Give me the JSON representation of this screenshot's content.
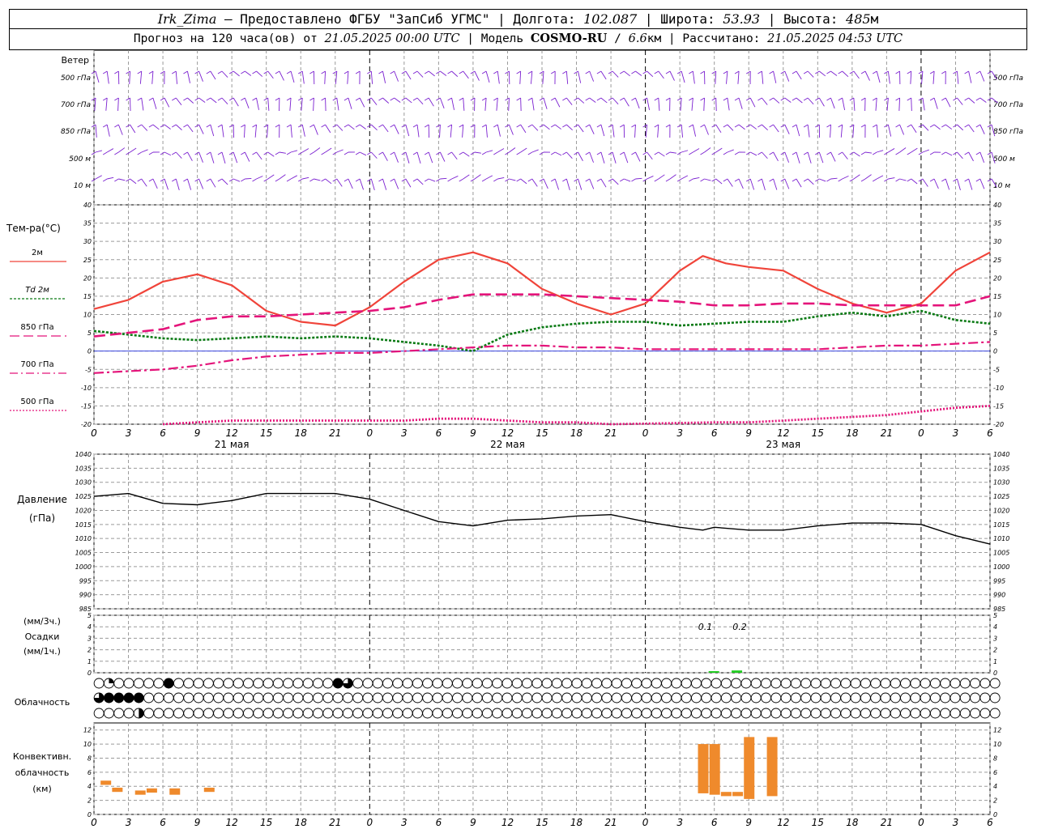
{
  "header": {
    "station": "Irk_Zima",
    "provider_prefix": " – Предоставлено ФГБУ \"ЗапСиб УГМС\" | Долгота: ",
    "lon": "102.087",
    "lat_prefix": " | Широта: ",
    "lat": "53.93",
    "alt_prefix": " | Высота: ",
    "alt": "485",
    "alt_unit": "м",
    "forecast_prefix": "Прогноз на 120 часа(ов) от ",
    "forecast_time": "21.05.2025 00:00 UTC",
    "model_prefix": " | Модель ",
    "model": "COSMO-RU",
    "res_sep": " / ",
    "res": "6.6",
    "res_unit": "км",
    "computed_prefix": " | Рассчитано: ",
    "computed": "21.05.2025 04:53 UTC"
  },
  "colors": {
    "grid": "#9a9a9a",
    "wind": "#7a1fd0",
    "t2m": "#f0443a",
    "td2m": "#0a7a14",
    "t850": "#e4147a",
    "t700": "#e4147a",
    "t500": "#e4147a",
    "zero_line": "#3a46e0",
    "pressure": "#000000",
    "precip": "#22cc22",
    "conv": "#ef8a2c"
  },
  "wind": {
    "title": "Ветер",
    "levels": [
      "500 гПа",
      "700 гПа",
      "850 гПа",
      "500 м",
      "10  м"
    ]
  },
  "temp": {
    "title": "Тем-ра(°C)",
    "legend": [
      "2м",
      "Td  2м",
      "850 гПа",
      "700 гПа",
      "500 гПа"
    ],
    "yticks": [
      40,
      35,
      30,
      25,
      20,
      15,
      10,
      5,
      0,
      -5,
      -10,
      -15,
      -20
    ]
  },
  "time_axis": {
    "hour_labels": [
      "0",
      "3",
      "6",
      "9",
      "12",
      "15",
      "18",
      "21",
      "0",
      "3",
      "6",
      "9",
      "12",
      "15",
      "18",
      "21",
      "0",
      "3",
      "6",
      "9",
      "12",
      "15",
      "18",
      "21",
      "0",
      "3",
      "6"
    ],
    "day_labels": [
      "21 мая",
      "22 мая",
      "23 мая"
    ]
  },
  "pressure_panel": {
    "title": "Давление",
    "unit": "(гПа)",
    "yticks": [
      1040,
      1035,
      1030,
      1025,
      1020,
      1015,
      1010,
      1005,
      1000,
      995,
      990,
      985
    ]
  },
  "precip_panel": {
    "title_a": "(мм/3ч.)",
    "title_b": "Осадки",
    "title_c": "(мм/1ч.)",
    "yticks": [
      5,
      4,
      3,
      2,
      1,
      0
    ],
    "labels": [
      {
        "hour": 53,
        "text": "0.1"
      },
      {
        "hour": 56,
        "text": "0.2"
      }
    ]
  },
  "cloud_panel": {
    "title": "Облачность"
  },
  "conv_panel": {
    "title_a": "Конвективн.",
    "title_b": "облачность",
    "title_c": "(км)",
    "yticks": [
      12,
      10,
      8,
      6,
      4,
      2,
      0
    ]
  },
  "chart_data": {
    "type": "line",
    "x_unit": "hours since 21.05.2025 00:00 UTC",
    "temperature": {
      "ylim": [
        -20,
        40
      ],
      "series": [
        {
          "name": "2м",
          "x": [
            0,
            3,
            6,
            9,
            12,
            15,
            18,
            21,
            24,
            27,
            30,
            33,
            36,
            39,
            42,
            45,
            48,
            51,
            53,
            55,
            57,
            60,
            63,
            66,
            69,
            72,
            75,
            78
          ],
          "values": [
            11.5,
            14,
            19,
            21,
            18,
            11,
            8,
            7,
            12,
            19,
            25,
            27,
            24,
            17,
            13,
            10,
            13,
            22,
            26,
            24,
            23,
            22,
            17,
            13,
            10.5,
            13,
            22,
            27
          ]
        },
        {
          "name": "Td  2м",
          "x": [
            0,
            3,
            6,
            9,
            12,
            15,
            18,
            21,
            24,
            27,
            30,
            33,
            36,
            39,
            42,
            45,
            48,
            51,
            54,
            57,
            60,
            63,
            66,
            69,
            72,
            75,
            78
          ],
          "values": [
            5.5,
            4.5,
            3.5,
            3,
            3.5,
            4,
            3.5,
            4,
            3.5,
            2.5,
            1.5,
            0,
            4.5,
            6.5,
            7.5,
            8,
            8,
            7,
            7.5,
            8,
            8,
            9.5,
            10.5,
            9.5,
            11,
            8.5,
            7.5
          ]
        },
        {
          "name": "850 гПа",
          "x": [
            0,
            3,
            6,
            9,
            12,
            15,
            18,
            21,
            24,
            27,
            30,
            33,
            36,
            39,
            42,
            45,
            48,
            51,
            54,
            57,
            60,
            63,
            66,
            69,
            72,
            75,
            78
          ],
          "values": [
            4,
            5,
            6,
            8.5,
            9.5,
            9.5,
            10,
            10.5,
            11,
            12,
            14,
            15.5,
            15.5,
            15.5,
            15,
            14.5,
            14,
            13.5,
            12.5,
            12.5,
            13,
            13,
            12.5,
            12.5,
            12.5,
            12.5,
            15
          ]
        },
        {
          "name": "700 гПа",
          "x": [
            0,
            3,
            6,
            9,
            12,
            15,
            18,
            21,
            24,
            27,
            30,
            33,
            36,
            39,
            42,
            45,
            48,
            51,
            54,
            57,
            60,
            63,
            66,
            69,
            72,
            75,
            78
          ],
          "values": [
            -6,
            -5.5,
            -5,
            -4,
            -2.5,
            -1.5,
            -1,
            -0.5,
            -0.5,
            0,
            0.5,
            1,
            1.5,
            1.5,
            1,
            1,
            0.5,
            0.5,
            0.5,
            0.5,
            0.5,
            0.5,
            1,
            1.5,
            1.5,
            2,
            2.5
          ]
        },
        {
          "name": "500 гПа",
          "x": [
            6,
            9,
            12,
            15,
            18,
            21,
            24,
            27,
            30,
            33,
            36,
            39,
            42,
            45,
            54,
            57,
            60,
            63,
            66,
            69,
            72,
            75,
            78
          ],
          "values": [
            -20,
            -19.5,
            -19,
            -19,
            -19,
            -19,
            -19,
            -19,
            -18.5,
            -18.5,
            -19,
            -19.5,
            -19.5,
            -20,
            -19.5,
            -19.5,
            -19,
            -18.5,
            -18,
            -17.5,
            -16.5,
            -15.5,
            -15
          ]
        }
      ]
    },
    "pressure": {
      "ylim": [
        985,
        1040
      ],
      "x": [
        0,
        3,
        6,
        9,
        12,
        15,
        18,
        21,
        24,
        27,
        30,
        33,
        36,
        39,
        42,
        45,
        48,
        51,
        53,
        54,
        57,
        60,
        63,
        66,
        69,
        72,
        75,
        78
      ],
      "values": [
        1025,
        1026,
        1022.5,
        1022,
        1023.5,
        1026,
        1026,
        1026,
        1024,
        1020,
        1016,
        1014.5,
        1016.5,
        1017,
        1018,
        1018.5,
        1016,
        1014,
        1013,
        1014,
        1013,
        1013,
        1014.5,
        1015.5,
        1015.5,
        1015,
        1011,
        1008
      ]
    },
    "precipitation": {
      "ylim": [
        0,
        5
      ],
      "bars": [
        {
          "x": 54,
          "value": 0.1
        },
        {
          "x": 56,
          "value": 0.2
        }
      ]
    },
    "cloud_cover_rows": [
      [
        0,
        1,
        0,
        0,
        0,
        0,
        0,
        4,
        0,
        0,
        0,
        0,
        0,
        0,
        0,
        0,
        0,
        0,
        0,
        0,
        0,
        0,
        0,
        0,
        4,
        3,
        0,
        0,
        0,
        0,
        0,
        0,
        0,
        0,
        0,
        0,
        0,
        0,
        0,
        0,
        0,
        0,
        0,
        0,
        0,
        0,
        0,
        0,
        0,
        0,
        0,
        0,
        0,
        0,
        0,
        0,
        0,
        0,
        0,
        0,
        0,
        0,
        0,
        0,
        0,
        0,
        0,
        0,
        0,
        0,
        0,
        0,
        0,
        0,
        0,
        0,
        0,
        0,
        0,
        0,
        0,
        0,
        0,
        0,
        0,
        0,
        0,
        0,
        0,
        0,
        0
      ],
      [
        3,
        4,
        4,
        4,
        4,
        0,
        0,
        0,
        0,
        0,
        0,
        0,
        0,
        0,
        0,
        0,
        0,
        0,
        0,
        0,
        0,
        0,
        0,
        0,
        0,
        0,
        0,
        0,
        0,
        0,
        0,
        0,
        0,
        0,
        0,
        0,
        0,
        0,
        0,
        0,
        0,
        0,
        0,
        0,
        0,
        0,
        0,
        0,
        0,
        0,
        0,
        0,
        0,
        0,
        0,
        0,
        0,
        0,
        0,
        0,
        0,
        0,
        0,
        0,
        0,
        0,
        0,
        0,
        0,
        0,
        0,
        0,
        0,
        0,
        0,
        0,
        0,
        0,
        0,
        0,
        0,
        0,
        0,
        0,
        0,
        0,
        0,
        0,
        0,
        0,
        0
      ],
      [
        0,
        0,
        0,
        0,
        2,
        0,
        0,
        0,
        0,
        0,
        0,
        0,
        0,
        0,
        0,
        0,
        0,
        0,
        0,
        0,
        0,
        0,
        0,
        0,
        0,
        0,
        0,
        0,
        0,
        0,
        0,
        0,
        0,
        0,
        0,
        0,
        0,
        0,
        0,
        0,
        0,
        0,
        0,
        0,
        0,
        0,
        0,
        0,
        0,
        0,
        0,
        0,
        0,
        0,
        0,
        0,
        0,
        0,
        0,
        0,
        0,
        0,
        0,
        0,
        0,
        0,
        0,
        0,
        0,
        0,
        0,
        0,
        0,
        0,
        0,
        0,
        0,
        0,
        0,
        0,
        0,
        0,
        0,
        0,
        0,
        0,
        0,
        0,
        0,
        0,
        0
      ]
    ],
    "convective_cloud": {
      "ylim": [
        0,
        12
      ],
      "bars": [
        {
          "x": 1,
          "base": 4.2,
          "top": 4.8
        },
        {
          "x": 2,
          "base": 3.2,
          "top": 3.8
        },
        {
          "x": 4,
          "base": 2.8,
          "top": 3.4
        },
        {
          "x": 5,
          "base": 3.1,
          "top": 3.7
        },
        {
          "x": 7,
          "base": 2.8,
          "top": 3.7
        },
        {
          "x": 10,
          "base": 3.2,
          "top": 3.8
        },
        {
          "x": 53,
          "base": 3.0,
          "top": 10.0
        },
        {
          "x": 54,
          "base": 2.8,
          "top": 10.0
        },
        {
          "x": 55,
          "base": 2.6,
          "top": 3.2
        },
        {
          "x": 56,
          "base": 2.6,
          "top": 3.2
        },
        {
          "x": 57,
          "base": 2.2,
          "top": 11.0
        },
        {
          "x": 59,
          "base": 2.6,
          "top": 11.0
        }
      ]
    }
  }
}
